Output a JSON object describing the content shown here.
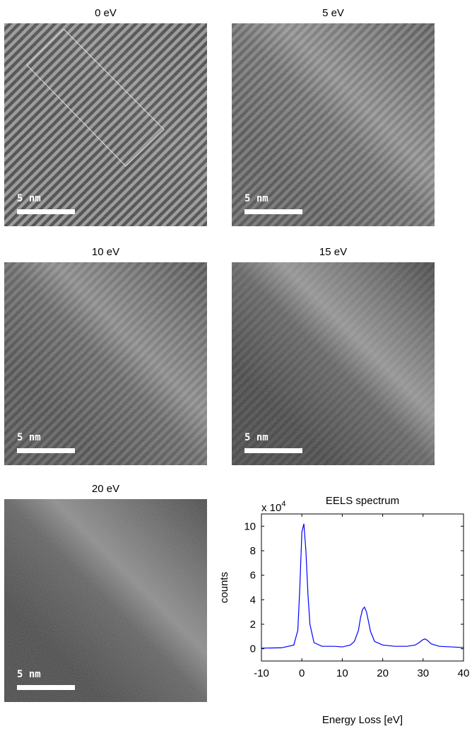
{
  "images": [
    {
      "label": "0 eV",
      "scale": "5 nm"
    },
    {
      "label": "5 eV",
      "scale": "5 nm"
    },
    {
      "label": "10 eV",
      "scale": "5 nm"
    },
    {
      "label": "15 eV",
      "scale": "5 nm"
    },
    {
      "label": "20 eV",
      "scale": "5 nm"
    }
  ],
  "chart_data": {
    "type": "line",
    "title": "EELS spectrum",
    "y_multiplier": {
      "base": "x 10",
      "exponent": "4"
    },
    "xlabel": "Energy Loss [eV]",
    "ylabel": "counts",
    "x": [
      -10,
      -5,
      -2,
      -1,
      -0.5,
      0,
      0.5,
      1,
      1.5,
      2,
      3,
      5,
      8,
      10,
      12,
      13,
      14,
      14.5,
      15,
      15.5,
      16,
      16.5,
      17,
      18,
      20,
      23,
      26,
      28,
      29,
      30,
      30.5,
      31,
      32,
      34,
      37,
      40
    ],
    "values": [
      0.05,
      0.08,
      0.3,
      1.5,
      5,
      9.5,
      10.2,
      8,
      4.5,
      2,
      0.5,
      0.2,
      0.2,
      0.15,
      0.3,
      0.6,
      1.5,
      2.5,
      3.2,
      3.4,
      3.0,
      2.2,
      1.4,
      0.6,
      0.3,
      0.2,
      0.2,
      0.3,
      0.5,
      0.75,
      0.8,
      0.7,
      0.4,
      0.2,
      0.15,
      0.1
    ],
    "color": "#0000ff",
    "xlim": [
      -10,
      40
    ],
    "xticks": [
      -10,
      0,
      10,
      20,
      30,
      40
    ],
    "ylim": [
      -1,
      11
    ],
    "yticks": [
      0,
      2,
      4,
      6,
      8,
      10
    ]
  }
}
